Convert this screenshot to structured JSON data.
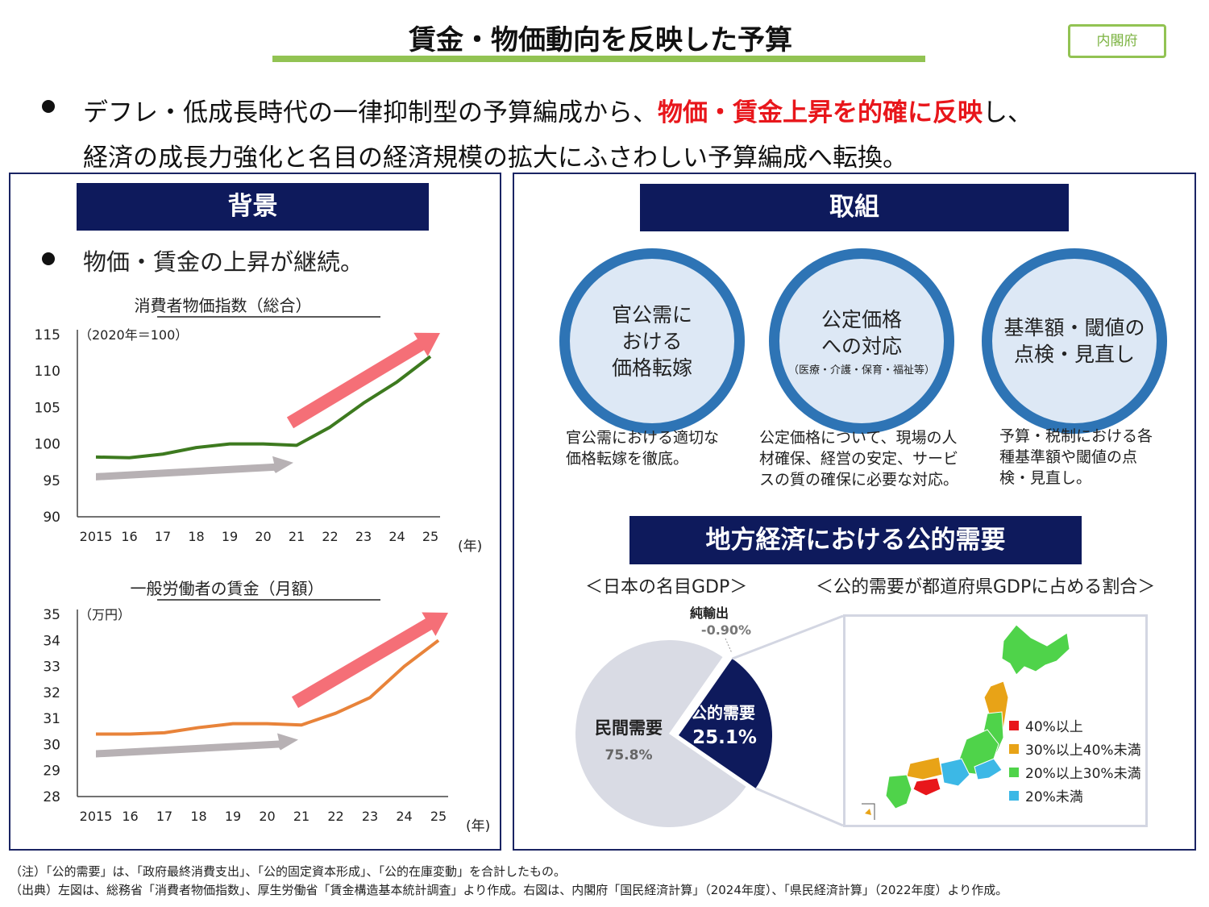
{
  "header": {
    "title": "賃金・物価動向を反映した予算",
    "org_badge": "内閣府"
  },
  "lead": {
    "line1_pre": "デフレ・低成長時代の一律抑制型の予算編成から、",
    "line1_emph": "物価・賃金上昇を的確に反映",
    "line1_post": "し、",
    "line2": "経済の成長力強化と名目の経済規模の拡大にふさわしい予算編成へ転換。"
  },
  "background": {
    "heading": "背景",
    "bullet": "物価・賃金の上昇が継続。"
  },
  "initiatives": {
    "heading": "取組",
    "items": [
      {
        "title": "官公需に\nおける\n価格転嫁",
        "sub": "",
        "desc": "官公需における適切な\n価格転嫁を徹底。"
      },
      {
        "title": "公定価格\nへの対応",
        "sub": "（医療・介護・保育・福祉等）",
        "desc": "公定価格について、現場の人\n材確保、経営の安定、サービ\nスの質の確保に必要な対応。"
      },
      {
        "title": "基準額・閾値の\n点検・見直し",
        "sub": "",
        "desc": "予算・税制における各\n種基準額や閾値の点\n検・見直し。"
      }
    ]
  },
  "regional": {
    "heading": "地方経済における公的需要",
    "gdp_caption": "＜日本の名目GDP＞",
    "map_caption": "＜公的需要が都道府県GDPに占める割合＞",
    "map_legend": [
      {
        "label": "40%以上",
        "color": "#e8161b"
      },
      {
        "label": "30%以上40%未満",
        "color": "#e8a317"
      },
      {
        "label": "20%以上30%未満",
        "color": "#4fd34a"
      },
      {
        "label": "20%未満",
        "color": "#3cb8e6"
      }
    ]
  },
  "chart_data": [
    {
      "type": "line",
      "title": "消費者物価指数（総合）",
      "unit_note": "（2020年＝100）",
      "xlabel_unit": "(年)",
      "categories": [
        "2015",
        "16",
        "17",
        "18",
        "19",
        "20",
        "21",
        "22",
        "23",
        "24",
        "25"
      ],
      "series": [
        {
          "values": [
            98.2,
            98.1,
            98.6,
            99.5,
            100.0,
            100.0,
            99.8,
            102.3,
            105.6,
            108.5,
            112.0
          ],
          "color": "#3d7a1f"
        }
      ],
      "ylim": [
        90,
        115
      ],
      "yticks": [
        "115",
        "110",
        "105",
        "100",
        "95",
        "90"
      ],
      "arrow_colors": [
        "#b7b1b4",
        "#f56f77"
      ]
    },
    {
      "type": "line",
      "title": "一般労働者の賃金（月額）",
      "unit_note": "（万円）",
      "xlabel_unit": "(年)",
      "categories": [
        "2015",
        "16",
        "17",
        "18",
        "19",
        "20",
        "21",
        "22",
        "23",
        "24",
        "25"
      ],
      "series": [
        {
          "values": [
            30.4,
            30.4,
            30.45,
            30.65,
            30.8,
            30.8,
            30.75,
            31.2,
            31.8,
            33.0,
            34.0
          ],
          "color": "#e8833a"
        }
      ],
      "ylim": [
        28,
        35
      ],
      "yticks": [
        "35",
        "34",
        "33",
        "32",
        "31",
        "30",
        "29",
        "28"
      ],
      "arrow_colors": [
        "#b7b1b4",
        "#f56f77"
      ]
    },
    {
      "type": "pie",
      "labels": [
        "民間需要",
        "公的需要",
        "純輸出"
      ],
      "values": [
        75.8,
        25.1,
        -0.9
      ],
      "value_labels": [
        "75.8%",
        "25.1%",
        "-0.90%"
      ],
      "colors": [
        "#d9dbe4",
        "#0e1a5c",
        "#ffffff"
      ]
    }
  ]
}
